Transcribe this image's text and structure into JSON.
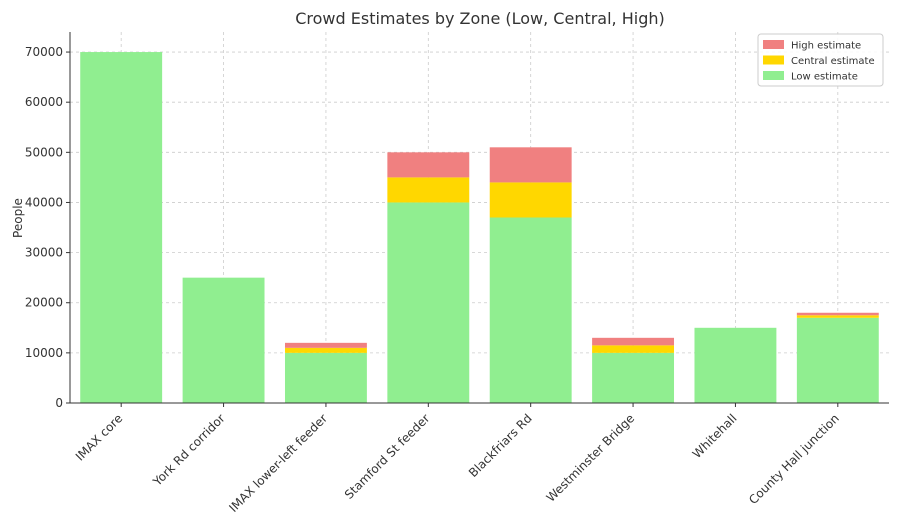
{
  "chart_data": {
    "type": "bar",
    "stacked": true,
    "title": "Crowd Estimates by Zone (Low, Central, High)",
    "xlabel": "",
    "ylabel": "People",
    "ylim": [
      0,
      74000
    ],
    "yticks": [
      0,
      10000,
      20000,
      30000,
      40000,
      50000,
      60000,
      70000
    ],
    "grid": true,
    "legend_position": "top-right",
    "categories": [
      "IMAX core",
      "York Rd corridor",
      "IMAX lower-left feeder",
      "Stamford St feeder",
      "Blackfriars Rd",
      "Westminster Bridge",
      "Whitehall",
      "County Hall junction"
    ],
    "series": [
      {
        "name": "Low estimate",
        "color": "#90EE90",
        "values": [
          70000,
          25000,
          10000,
          40000,
          37000,
          10000,
          15000,
          17000
        ]
      },
      {
        "name": "Central estimate",
        "color": "#FFD700",
        "values": [
          0,
          0,
          1000,
          5000,
          7000,
          1500,
          0,
          500
        ]
      },
      {
        "name": "High estimate",
        "color": "#F08080",
        "values": [
          0,
          0,
          1000,
          5000,
          7000,
          1500,
          0,
          500
        ]
      }
    ],
    "legend_order": [
      "High estimate",
      "Central estimate",
      "Low estimate"
    ]
  }
}
